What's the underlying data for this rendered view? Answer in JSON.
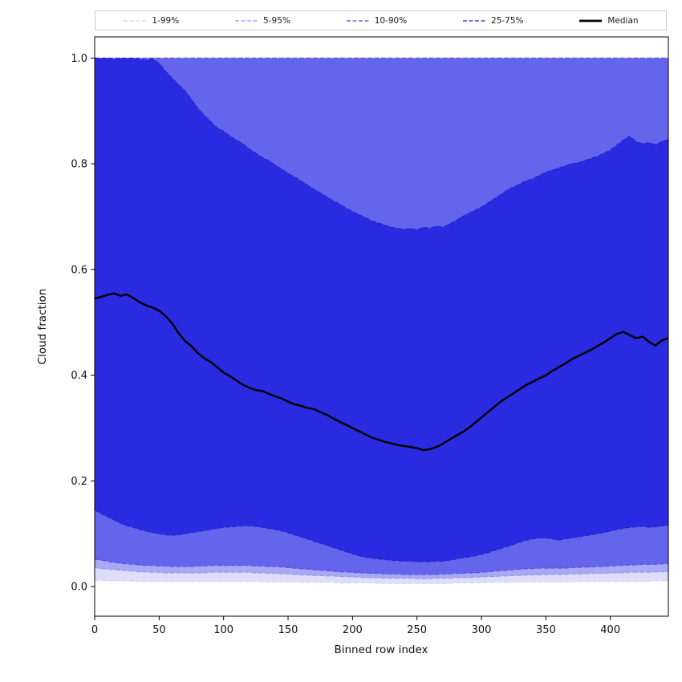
{
  "chart_data": {
    "type": "area",
    "title": "",
    "xlabel": "Binned row index",
    "ylabel": "Cloud fraction",
    "xlim": [
      0,
      445
    ],
    "ylim": [
      -0.056,
      1.04
    ],
    "grid": false,
    "legend_position": "top",
    "x_ticks": [
      0,
      50,
      100,
      150,
      200,
      250,
      300,
      350,
      400
    ],
    "y_ticks": [
      0.0,
      0.2,
      0.4,
      0.6,
      0.8,
      1.0
    ],
    "y_tick_labels": [
      "0.0",
      "0.2",
      "0.4",
      "0.6",
      "0.8",
      "1.0"
    ],
    "x": {
      "start": 0,
      "step": 5,
      "count": 90
    },
    "series": {
      "median": [
        0.545,
        0.548,
        0.552,
        0.555,
        0.55,
        0.553,
        0.546,
        0.538,
        0.532,
        0.528,
        0.522,
        0.512,
        0.498,
        0.48,
        0.465,
        0.455,
        0.442,
        0.432,
        0.425,
        0.415,
        0.405,
        0.398,
        0.39,
        0.382,
        0.376,
        0.372,
        0.37,
        0.365,
        0.36,
        0.356,
        0.35,
        0.345,
        0.342,
        0.338,
        0.336,
        0.33,
        0.325,
        0.318,
        0.312,
        0.306,
        0.3,
        0.294,
        0.288,
        0.282,
        0.278,
        0.274,
        0.271,
        0.268,
        0.266,
        0.264,
        0.262,
        0.258,
        0.26,
        0.264,
        0.27,
        0.278,
        0.285,
        0.292,
        0.3,
        0.31,
        0.32,
        0.33,
        0.34,
        0.35,
        0.358,
        0.366,
        0.374,
        0.382,
        0.388,
        0.394,
        0.4,
        0.408,
        0.415,
        0.422,
        0.43,
        0.436,
        0.442,
        0.448,
        0.455,
        0.462,
        0.47,
        0.478,
        0.482,
        0.476,
        0.47,
        0.473,
        0.463,
        0.456,
        0.466,
        0.47
      ],
      "p75": [
        1.0,
        0.999,
        1.0,
        0.998,
        1.0,
        0.999,
        1.0,
        0.998,
        0.996,
        0.999,
        0.99,
        0.975,
        0.962,
        0.95,
        0.938,
        0.922,
        0.905,
        0.892,
        0.88,
        0.868,
        0.862,
        0.852,
        0.845,
        0.838,
        0.828,
        0.82,
        0.812,
        0.806,
        0.798,
        0.79,
        0.782,
        0.775,
        0.768,
        0.76,
        0.752,
        0.745,
        0.738,
        0.73,
        0.724,
        0.716,
        0.71,
        0.704,
        0.698,
        0.692,
        0.688,
        0.684,
        0.68,
        0.678,
        0.676,
        0.678,
        0.675,
        0.68,
        0.678,
        0.682,
        0.68,
        0.686,
        0.692,
        0.7,
        0.706,
        0.712,
        0.718,
        0.726,
        0.734,
        0.742,
        0.75,
        0.756,
        0.762,
        0.768,
        0.772,
        0.778,
        0.784,
        0.788,
        0.792,
        0.796,
        0.8,
        0.802,
        0.806,
        0.81,
        0.814,
        0.82,
        0.826,
        0.835,
        0.845,
        0.852,
        0.842,
        0.838,
        0.84,
        0.836,
        0.842,
        0.846
      ],
      "p25": [
        0.145,
        0.138,
        0.132,
        0.126,
        0.12,
        0.115,
        0.112,
        0.108,
        0.105,
        0.102,
        0.1,
        0.098,
        0.097,
        0.098,
        0.1,
        0.102,
        0.104,
        0.106,
        0.108,
        0.11,
        0.112,
        0.113,
        0.114,
        0.115,
        0.115,
        0.114,
        0.112,
        0.11,
        0.108,
        0.105,
        0.102,
        0.098,
        0.094,
        0.09,
        0.086,
        0.082,
        0.078,
        0.074,
        0.07,
        0.066,
        0.062,
        0.058,
        0.056,
        0.054,
        0.052,
        0.051,
        0.05,
        0.049,
        0.048,
        0.048,
        0.047,
        0.047,
        0.047,
        0.048,
        0.048,
        0.05,
        0.052,
        0.054,
        0.056,
        0.058,
        0.061,
        0.064,
        0.068,
        0.072,
        0.076,
        0.08,
        0.084,
        0.088,
        0.09,
        0.092,
        0.092,
        0.09,
        0.088,
        0.09,
        0.092,
        0.094,
        0.096,
        0.098,
        0.1,
        0.102,
        0.105,
        0.108,
        0.11,
        0.112,
        0.113,
        0.114,
        0.112,
        0.113,
        0.115,
        0.116
      ],
      "p10": [
        0.052,
        0.05,
        0.048,
        0.046,
        0.044,
        0.043,
        0.042,
        0.041,
        0.04,
        0.04,
        0.039,
        0.039,
        0.038,
        0.038,
        0.038,
        0.038,
        0.039,
        0.039,
        0.04,
        0.04,
        0.04,
        0.04,
        0.04,
        0.04,
        0.04,
        0.039,
        0.039,
        0.038,
        0.038,
        0.037,
        0.036,
        0.035,
        0.034,
        0.033,
        0.032,
        0.031,
        0.03,
        0.029,
        0.028,
        0.028,
        0.027,
        0.026,
        0.026,
        0.025,
        0.025,
        0.024,
        0.024,
        0.024,
        0.023,
        0.023,
        0.023,
        0.023,
        0.023,
        0.023,
        0.024,
        0.024,
        0.025,
        0.025,
        0.026,
        0.026,
        0.027,
        0.028,
        0.029,
        0.03,
        0.031,
        0.032,
        0.033,
        0.034,
        0.034,
        0.035,
        0.035,
        0.035,
        0.035,
        0.035,
        0.036,
        0.036,
        0.037,
        0.037,
        0.038,
        0.038,
        0.039,
        0.04,
        0.04,
        0.041,
        0.041,
        0.042,
        0.042,
        0.042,
        0.043,
        0.043
      ],
      "p05": [
        0.036,
        0.034,
        0.033,
        0.032,
        0.031,
        0.03,
        0.029,
        0.028,
        0.028,
        0.027,
        0.027,
        0.026,
        0.026,
        0.026,
        0.026,
        0.026,
        0.026,
        0.026,
        0.027,
        0.027,
        0.027,
        0.027,
        0.027,
        0.027,
        0.027,
        0.026,
        0.026,
        0.025,
        0.025,
        0.024,
        0.024,
        0.023,
        0.022,
        0.022,
        0.021,
        0.021,
        0.02,
        0.02,
        0.019,
        0.019,
        0.018,
        0.018,
        0.017,
        0.017,
        0.017,
        0.016,
        0.016,
        0.016,
        0.016,
        0.016,
        0.015,
        0.015,
        0.015,
        0.016,
        0.016,
        0.016,
        0.017,
        0.017,
        0.017,
        0.018,
        0.018,
        0.019,
        0.019,
        0.02,
        0.02,
        0.021,
        0.021,
        0.022,
        0.022,
        0.022,
        0.023,
        0.023,
        0.023,
        0.023,
        0.024,
        0.024,
        0.024,
        0.025,
        0.025,
        0.025,
        0.026,
        0.026,
        0.026,
        0.027,
        0.027,
        0.027,
        0.027,
        0.028,
        0.028,
        0.028
      ],
      "p01": [
        0.012,
        0.012,
        0.011,
        0.011,
        0.011,
        0.011,
        0.01,
        0.01,
        0.01,
        0.01,
        0.01,
        0.01,
        0.01,
        0.01,
        0.01,
        0.01,
        0.01,
        0.01,
        0.01,
        0.01,
        0.01,
        0.01,
        0.01,
        0.01,
        0.01,
        0.01,
        0.009,
        0.009,
        0.009,
        0.009,
        0.009,
        0.009,
        0.008,
        0.008,
        0.008,
        0.008,
        0.008,
        0.008,
        0.007,
        0.007,
        0.007,
        0.007,
        0.007,
        0.007,
        0.006,
        0.006,
        0.006,
        0.006,
        0.006,
        0.006,
        0.006,
        0.006,
        0.006,
        0.006,
        0.006,
        0.006,
        0.007,
        0.007,
        0.007,
        0.007,
        0.007,
        0.008,
        0.008,
        0.008,
        0.008,
        0.008,
        0.009,
        0.009,
        0.009,
        0.009,
        0.009,
        0.009,
        0.009,
        0.009,
        0.009,
        0.01,
        0.01,
        0.01,
        0.01,
        0.01,
        0.01,
        0.01,
        0.01,
        0.01,
        0.01,
        0.01,
        0.01,
        0.011,
        0.011,
        0.011
      ],
      "p90": 1.0,
      "p95": 1.0,
      "p99": 1.0
    },
    "bands": [
      {
        "label": "1-99%",
        "lo": "p01",
        "hi": "p99",
        "fill": "#dedefb",
        "edge": "#cfcff7"
      },
      {
        "label": "5-95%",
        "lo": "p05",
        "hi": "p95",
        "fill": "#a8a8f4",
        "edge": "#9292ef"
      },
      {
        "label": "10-90%",
        "lo": "p10",
        "hi": "p90",
        "fill": "#6464ec",
        "edge": "#4d4de6"
      },
      {
        "label": "25-75%",
        "lo": "p25",
        "hi": "p75",
        "fill": "#2a2ae0",
        "edge": "#2424c4"
      }
    ],
    "median_style": {
      "label": "Median",
      "color": "#000000",
      "width": 2.4
    }
  }
}
